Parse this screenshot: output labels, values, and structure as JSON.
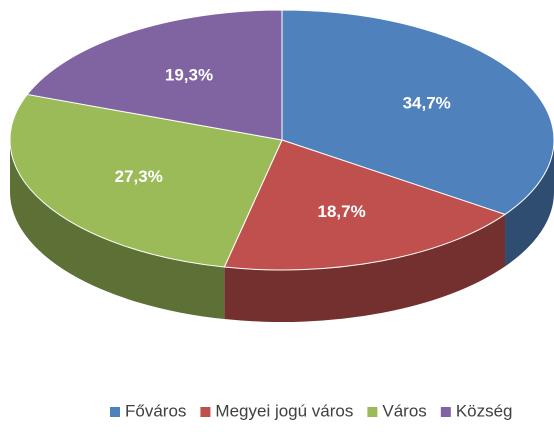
{
  "chart_data": {
    "type": "pie",
    "categories": [
      "Főváros",
      "Megyei jogú város",
      "Város",
      "Község"
    ],
    "values": [
      34.7,
      18.7,
      27.3,
      19.3
    ],
    "value_labels": [
      "34,7%",
      "18,7%",
      "27,3%",
      "19,3%"
    ],
    "colors": [
      "#4f81bd",
      "#c0504d",
      "#9bbb59",
      "#8064a2"
    ],
    "legend": "bottom"
  }
}
